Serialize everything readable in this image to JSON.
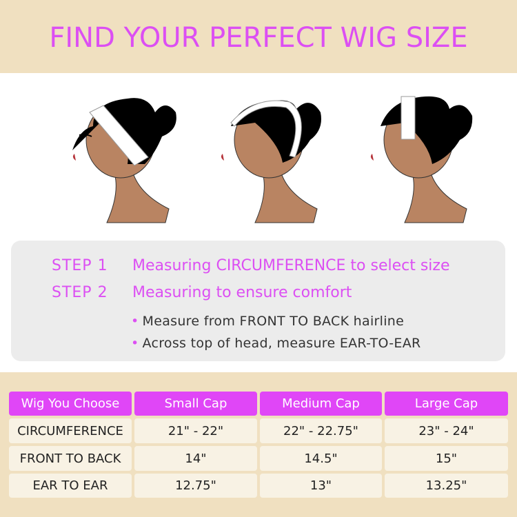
{
  "title": "FIND YOUR PERFECT WIG SIZE",
  "illustrations": [
    "head-circumference-measure-icon",
    "head-front-to-back-measure-icon",
    "head-ear-to-ear-measure-icon"
  ],
  "steps": [
    {
      "label": "STEP 1",
      "text": "Measuring CIRCUMFERENCE to select size"
    },
    {
      "label": "STEP 2",
      "text": "Measuring to ensure comfort"
    }
  ],
  "bullets": [
    "Measure from FRONT TO BACK hairline",
    "Across top of head, measure EAR-TO-EAR"
  ],
  "table": {
    "headers": [
      "Wig You Choose",
      "Small Cap",
      "Medium Cap",
      "Large Cap"
    ],
    "rows": [
      [
        "CIRCUMFERENCE",
        "21\" - 22\"",
        "22\" - 22.75\"",
        "23\" - 24\""
      ],
      [
        "FRONT TO BACK",
        "14\"",
        "14.5\"",
        "15\""
      ],
      [
        "EAR TO EAR",
        "12.75\"",
        "13\"",
        "13.25\""
      ]
    ]
  },
  "colors": {
    "accent": "#e046f7",
    "band": "#f0e0c0",
    "panel": "#ececec",
    "cell": "#f8f2e4",
    "skin": "#b98462"
  }
}
